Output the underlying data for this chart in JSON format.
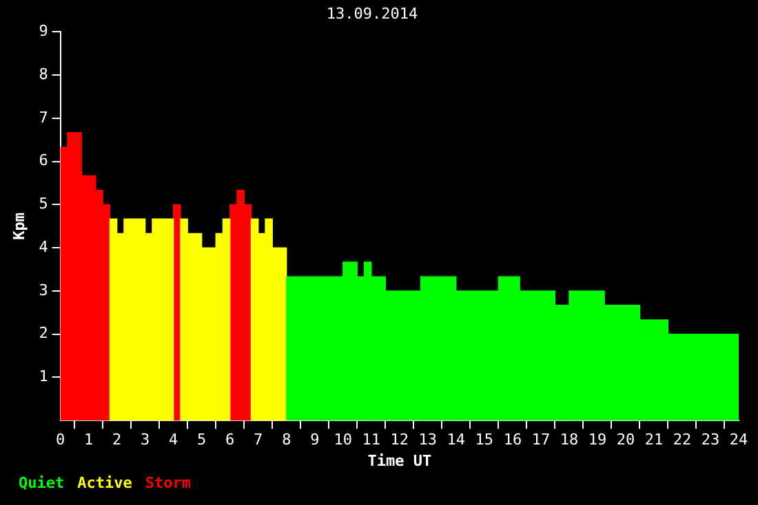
{
  "chart_data": {
    "type": "histogram",
    "title": "13.09.2014",
    "xlabel": "Time UT",
    "ylabel": "Kpm",
    "bins": [
      0,
      0.25,
      0.75,
      1.25,
      1.5,
      1.75,
      2,
      2.25,
      3,
      3.25,
      4,
      4.25,
      4.5,
      5,
      5.5,
      5.75,
      6,
      6.25,
      6.5,
      6.75,
      7,
      7.25,
      7.5,
      8,
      10,
      10.5,
      10.75,
      11,
      11.5,
      12.75,
      14,
      15.5,
      16.25,
      17.5,
      18,
      19.25,
      20.5,
      21.5,
      24
    ],
    "series": [
      {
        "name": "Quiet",
        "color": "#00ff00",
        "values": [
          null,
          null,
          null,
          null,
          null,
          null,
          null,
          null,
          null,
          null,
          null,
          null,
          null,
          null,
          null,
          null,
          null,
          null,
          null,
          null,
          null,
          null,
          null,
          3.33,
          3.67,
          3.33,
          3.67,
          3.33,
          3,
          3.33,
          3,
          3.33,
          3,
          2.67,
          3,
          2.67,
          2.33,
          2
        ]
      },
      {
        "name": "Active",
        "color": "#ffff00",
        "values": [
          null,
          null,
          null,
          null,
          null,
          4.67,
          4.33,
          4.67,
          4.33,
          4.67,
          null,
          4.67,
          4.33,
          4,
          4.33,
          4.67,
          null,
          null,
          null,
          4.67,
          4.33,
          4.67,
          4,
          null,
          null,
          null,
          null,
          null,
          null,
          null,
          null,
          null,
          null,
          null,
          null,
          null,
          null,
          null
        ]
      },
      {
        "name": "Storm",
        "color": "#ff0000",
        "values": [
          6.33,
          6.67,
          5.67,
          5.33,
          5,
          null,
          null,
          null,
          null,
          null,
          5,
          null,
          null,
          null,
          null,
          null,
          5,
          5.33,
          5,
          null,
          null,
          null,
          null,
          null,
          null,
          null,
          null,
          null,
          null,
          null,
          null,
          null,
          null,
          null,
          null,
          null,
          null,
          null
        ]
      }
    ],
    "xlim": [
      0,
      24
    ],
    "xticks": [
      0,
      1,
      2,
      3,
      4,
      5,
      6,
      7,
      8,
      9,
      10,
      11,
      12,
      13,
      14,
      15,
      16,
      17,
      18,
      19,
      20,
      21,
      22,
      23,
      24
    ],
    "ylim": [
      0,
      9
    ],
    "yticks": [
      1,
      2,
      3,
      4,
      5,
      6,
      7,
      8,
      9
    ],
    "legend": "bottom left",
    "grid": false
  }
}
